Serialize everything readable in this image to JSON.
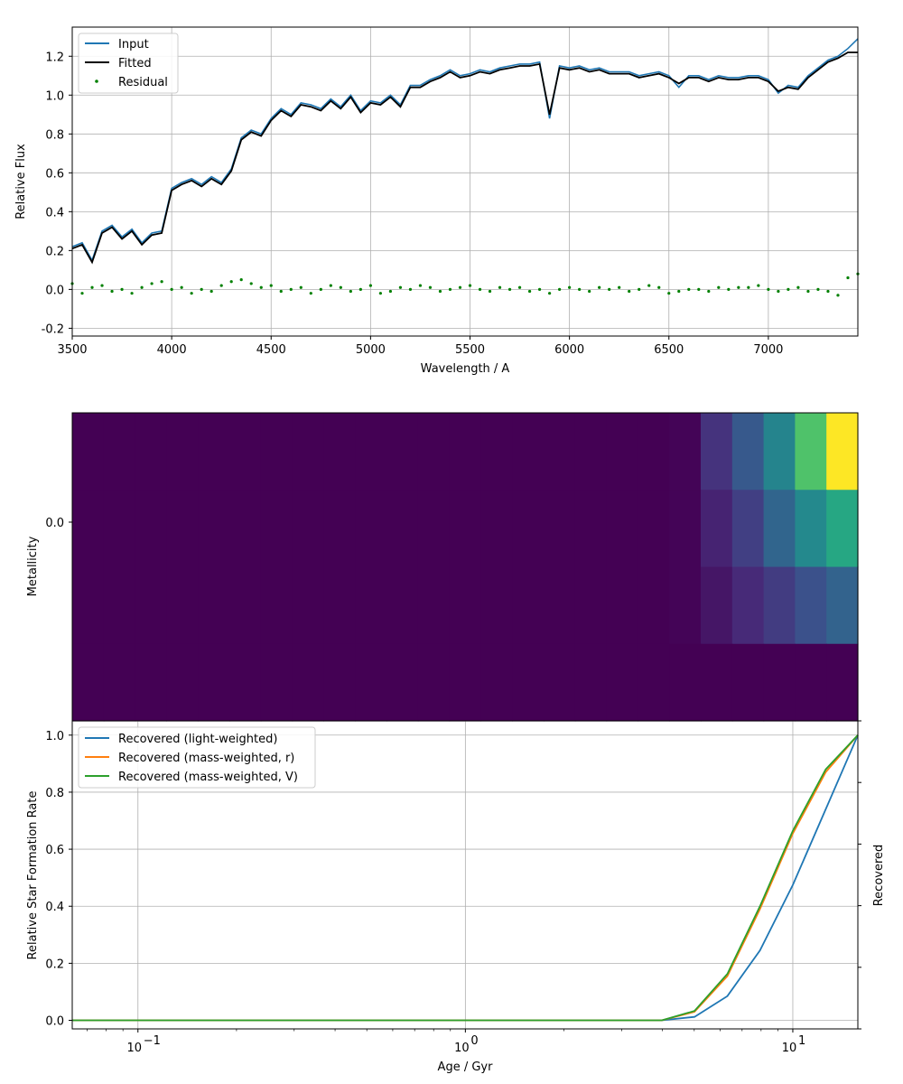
{
  "chart_data": [
    {
      "type": "line",
      "xlabel": "Wavelength / A",
      "ylabel": "Relative Flux",
      "xlim": [
        3500,
        7450
      ],
      "ylim": [
        -0.24,
        1.35
      ],
      "xticks": [
        "3500",
        "4000",
        "4500",
        "5000",
        "5500",
        "6000",
        "6500",
        "7000"
      ],
      "yticks": [
        "-0.2",
        "0.0",
        "0.2",
        "0.4",
        "0.6",
        "0.8",
        "1.0",
        "1.2"
      ],
      "grid": true,
      "legend_position": "upper-left",
      "series": [
        {
          "name": "Input",
          "color": "#1f77b4",
          "x": [
            3500,
            3550,
            3600,
            3650,
            3700,
            3750,
            3800,
            3850,
            3900,
            3950,
            4000,
            4050,
            4100,
            4150,
            4200,
            4250,
            4300,
            4350,
            4400,
            4450,
            4500,
            4550,
            4600,
            4650,
            4700,
            4750,
            4800,
            4850,
            4900,
            4950,
            5000,
            5050,
            5100,
            5150,
            5200,
            5250,
            5300,
            5350,
            5400,
            5450,
            5500,
            5550,
            5600,
            5650,
            5700,
            5750,
            5800,
            5850,
            5900,
            5950,
            6000,
            6050,
            6100,
            6150,
            6200,
            6250,
            6300,
            6350,
            6400,
            6450,
            6500,
            6550,
            6600,
            6650,
            6700,
            6750,
            6800,
            6850,
            6900,
            6950,
            7000,
            7050,
            7100,
            7150,
            7200,
            7250,
            7300,
            7350,
            7400,
            7450
          ],
          "y": [
            0.22,
            0.24,
            0.15,
            0.3,
            0.33,
            0.27,
            0.31,
            0.24,
            0.29,
            0.3,
            0.52,
            0.55,
            0.57,
            0.54,
            0.58,
            0.55,
            0.62,
            0.78,
            0.82,
            0.8,
            0.88,
            0.93,
            0.9,
            0.96,
            0.95,
            0.93,
            0.98,
            0.94,
            1.0,
            0.92,
            0.97,
            0.96,
            1.0,
            0.95,
            1.05,
            1.05,
            1.08,
            1.1,
            1.13,
            1.1,
            1.11,
            1.13,
            1.12,
            1.14,
            1.15,
            1.16,
            1.16,
            1.17,
            0.88,
            1.15,
            1.14,
            1.15,
            1.13,
            1.14,
            1.12,
            1.12,
            1.12,
            1.1,
            1.11,
            1.12,
            1.1,
            1.04,
            1.1,
            1.1,
            1.08,
            1.1,
            1.09,
            1.09,
            1.1,
            1.1,
            1.08,
            1.01,
            1.05,
            1.04,
            1.1,
            1.14,
            1.18,
            1.2,
            1.24,
            1.29
          ]
        },
        {
          "name": "Fitted",
          "color": "#000000",
          "x": [
            3500,
            3550,
            3600,
            3650,
            3700,
            3750,
            3800,
            3850,
            3900,
            3950,
            4000,
            4050,
            4100,
            4150,
            4200,
            4250,
            4300,
            4350,
            4400,
            4450,
            4500,
            4550,
            4600,
            4650,
            4700,
            4750,
            4800,
            4850,
            4900,
            4950,
            5000,
            5050,
            5100,
            5150,
            5200,
            5250,
            5300,
            5350,
            5400,
            5450,
            5500,
            5550,
            5600,
            5650,
            5700,
            5750,
            5800,
            5850,
            5900,
            5950,
            6000,
            6050,
            6100,
            6150,
            6200,
            6250,
            6300,
            6350,
            6400,
            6450,
            6500,
            6550,
            6600,
            6650,
            6700,
            6750,
            6800,
            6850,
            6900,
            6950,
            7000,
            7050,
            7100,
            7150,
            7200,
            7250,
            7300,
            7350,
            7400,
            7450
          ],
          "y": [
            0.21,
            0.23,
            0.14,
            0.29,
            0.32,
            0.26,
            0.3,
            0.23,
            0.28,
            0.29,
            0.51,
            0.54,
            0.56,
            0.53,
            0.57,
            0.54,
            0.61,
            0.77,
            0.81,
            0.79,
            0.87,
            0.92,
            0.89,
            0.95,
            0.94,
            0.92,
            0.97,
            0.93,
            0.99,
            0.91,
            0.96,
            0.95,
            0.99,
            0.94,
            1.04,
            1.04,
            1.07,
            1.09,
            1.12,
            1.09,
            1.1,
            1.12,
            1.11,
            1.13,
            1.14,
            1.15,
            1.15,
            1.16,
            0.9,
            1.14,
            1.13,
            1.14,
            1.12,
            1.13,
            1.11,
            1.11,
            1.11,
            1.09,
            1.1,
            1.11,
            1.09,
            1.06,
            1.09,
            1.09,
            1.07,
            1.09,
            1.08,
            1.08,
            1.09,
            1.09,
            1.07,
            1.02,
            1.04,
            1.03,
            1.09,
            1.13,
            1.17,
            1.19,
            1.22,
            1.22
          ]
        },
        {
          "name": "Residual",
          "type": "scatter",
          "color": "#008000",
          "x": [
            3500,
            3550,
            3600,
            3650,
            3700,
            3750,
            3800,
            3850,
            3900,
            3950,
            4000,
            4050,
            4100,
            4150,
            4200,
            4250,
            4300,
            4350,
            4400,
            4450,
            4500,
            4550,
            4600,
            4650,
            4700,
            4750,
            4800,
            4850,
            4900,
            4950,
            5000,
            5050,
            5100,
            5150,
            5200,
            5250,
            5300,
            5350,
            5400,
            5450,
            5500,
            5550,
            5600,
            5650,
            5700,
            5750,
            5800,
            5850,
            5900,
            5950,
            6000,
            6050,
            6100,
            6150,
            6200,
            6250,
            6300,
            6350,
            6400,
            6450,
            6500,
            6550,
            6600,
            6650,
            6700,
            6750,
            6800,
            6850,
            6900,
            6950,
            7000,
            7050,
            7100,
            7150,
            7200,
            7250,
            7300,
            7350,
            7400,
            7450
          ],
          "y": [
            0.03,
            -0.02,
            0.01,
            0.02,
            -0.01,
            0.0,
            -0.02,
            0.01,
            0.03,
            0.04,
            0.0,
            0.01,
            -0.02,
            0.0,
            -0.01,
            0.02,
            0.04,
            0.05,
            0.03,
            0.01,
            0.02,
            -0.01,
            0.0,
            0.01,
            -0.02,
            0.0,
            0.02,
            0.01,
            -0.01,
            0.0,
            0.02,
            -0.02,
            -0.01,
            0.01,
            0.0,
            0.02,
            0.01,
            -0.01,
            0.0,
            0.01,
            0.02,
            0.0,
            -0.01,
            0.01,
            0.0,
            0.01,
            -0.01,
            0.0,
            -0.02,
            0.0,
            0.01,
            0.0,
            -0.01,
            0.01,
            0.0,
            0.01,
            -0.01,
            0.0,
            0.02,
            0.01,
            -0.02,
            -0.01,
            0.0,
            0.0,
            -0.01,
            0.01,
            0.0,
            0.01,
            0.01,
            0.02,
            0.0,
            -0.01,
            0.0,
            0.01,
            -0.01,
            0.0,
            -0.01,
            -0.03,
            0.06,
            0.08
          ]
        }
      ]
    },
    {
      "type": "heatmap",
      "xlabel": "",
      "ylabel": "Metallicity",
      "yticks": [
        "0.0"
      ],
      "columns": 25,
      "rows": 4,
      "colormap": "viridis",
      "values": [
        [
          0,
          0,
          0,
          0,
          0,
          0,
          0,
          0,
          0,
          0,
          0,
          0,
          0,
          0,
          0,
          0,
          0,
          0,
          0,
          0.01,
          0.15,
          0.28,
          0.45,
          0.72,
          1.0
        ],
        [
          0,
          0,
          0,
          0,
          0,
          0,
          0,
          0,
          0,
          0,
          0,
          0,
          0,
          0,
          0,
          0,
          0,
          0,
          0,
          0.01,
          0.1,
          0.19,
          0.33,
          0.47,
          0.6
        ],
        [
          0,
          0,
          0,
          0,
          0,
          0,
          0,
          0,
          0,
          0,
          0,
          0,
          0,
          0,
          0,
          0,
          0,
          0,
          0,
          0.01,
          0.06,
          0.12,
          0.18,
          0.25,
          0.32
        ],
        [
          0,
          0,
          0,
          0,
          0,
          0,
          0,
          0,
          0,
          0,
          0,
          0,
          0,
          0,
          0,
          0,
          0,
          0,
          0,
          0,
          0,
          0,
          0,
          0,
          0
        ]
      ]
    },
    {
      "type": "line",
      "xlabel": "Age / Gyr",
      "ylabel": "Relative Star Formation Rate",
      "ylabel_right": "Recovered",
      "xscale": "log",
      "xlim": [
        0.063,
        15.8
      ],
      "ylim": [
        -0.03,
        1.05
      ],
      "xticks": [
        0.1,
        1,
        10
      ],
      "xtick_labels": [
        "10",
        "10",
        "10"
      ],
      "xtick_exponents": [
        "−1",
        "0",
        "1"
      ],
      "yticks": [
        "0.0",
        "0.2",
        "0.4",
        "0.6",
        "0.8",
        "1.0"
      ],
      "grid": true,
      "legend_position": "upper-left",
      "x": [
        0.063,
        0.1,
        0.2,
        0.5,
        1.0,
        2.0,
        3.98,
        5.01,
        6.31,
        7.94,
        10.0,
        12.6,
        15.8
      ],
      "series": [
        {
          "name": "Recovered (light-weighted)",
          "color": "#1f77b4",
          "values": [
            0,
            0,
            0,
            0,
            0,
            0,
            0,
            0.012,
            0.085,
            0.245,
            0.475,
            0.74,
            1.0
          ]
        },
        {
          "name": "Recovered (mass-weighted, r)",
          "color": "#ff7f0e",
          "values": [
            0,
            0,
            0,
            0,
            0,
            0,
            0,
            0.03,
            0.155,
            0.39,
            0.655,
            0.87,
            1.0
          ]
        },
        {
          "name": "Recovered (mass-weighted, V)",
          "color": "#2ca02c",
          "values": [
            0,
            0,
            0,
            0,
            0,
            0,
            0,
            0.033,
            0.163,
            0.4,
            0.665,
            0.88,
            1.0
          ]
        }
      ]
    }
  ]
}
